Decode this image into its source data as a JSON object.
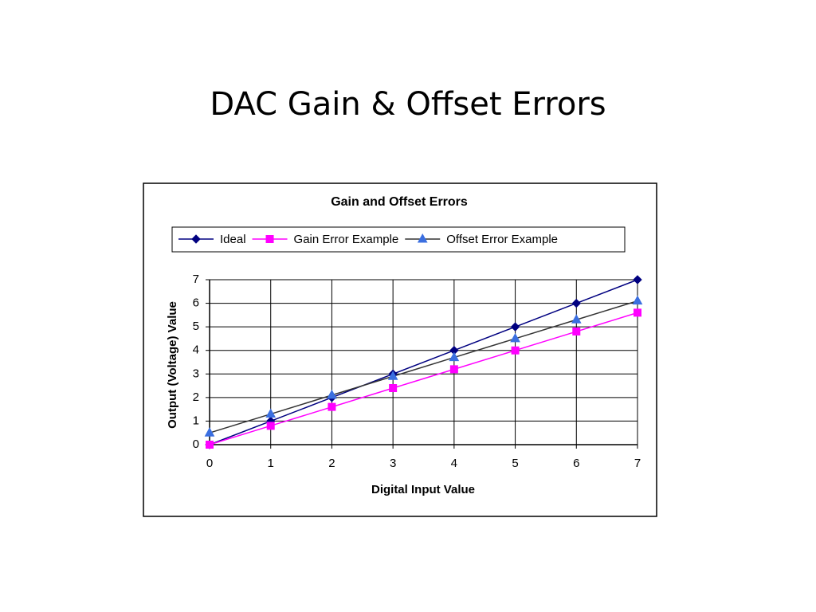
{
  "slide_title": "DAC Gain & Offset Errors",
  "chart_data": {
    "type": "line",
    "title": "Gain and Offset Errors",
    "x_label": "Digital Input Value",
    "y_label": "Output (Voltage) Value",
    "x": [
      0,
      1,
      2,
      3,
      4,
      5,
      6,
      7
    ],
    "series": [
      {
        "name": "Ideal",
        "color": "#000080",
        "marker": "diamond",
        "marker_color": "#000080",
        "values": [
          0,
          1,
          2,
          3,
          4,
          5,
          6,
          7
        ]
      },
      {
        "name": "Gain Error Example",
        "color": "#ff00ff",
        "marker": "square",
        "marker_color": "#ff00ff",
        "values": [
          0,
          0.8,
          1.6,
          2.4,
          3.2,
          4.0,
          4.8,
          5.6
        ]
      },
      {
        "name": "Offset Error Example",
        "color": "#333333",
        "marker": "triangle",
        "marker_color": "#3b6fe0",
        "values": [
          0.5,
          1.3,
          2.1,
          2.9,
          3.7,
          4.5,
          5.3,
          6.1
        ]
      }
    ],
    "xlim": [
      0,
      7
    ],
    "xticks": [
      0,
      1,
      2,
      3,
      4,
      5,
      6,
      7
    ],
    "ylim": [
      0,
      7
    ],
    "yticks": [
      0,
      1,
      2,
      3,
      4,
      5,
      6,
      7
    ],
    "grid": true,
    "legend": "top"
  }
}
